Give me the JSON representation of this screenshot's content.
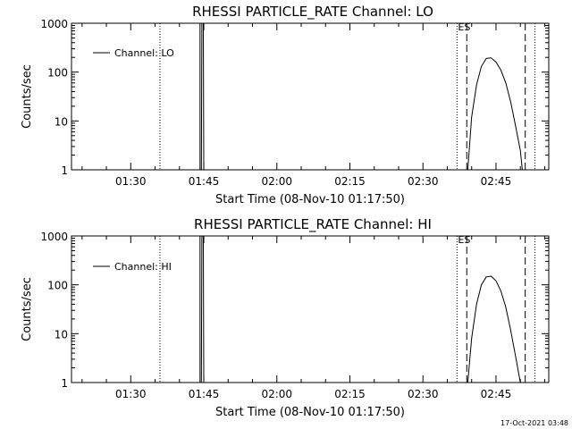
{
  "footer_timestamp": "17-Oct-2021 03:48",
  "chart_data": [
    {
      "type": "line",
      "title": "RHESSI PARTICLE_RATE Channel: LO",
      "xlabel": "Start Time (08-Nov-10 01:17:50)",
      "ylabel": "Counts/sec",
      "yscale": "log",
      "ylim": [
        1,
        1000
      ],
      "xlim_minutes_after_start": [
        0,
        98
      ],
      "x_tick_labels": [
        "01:30",
        "01:45",
        "02:00",
        "02:15",
        "02:30",
        "02:45"
      ],
      "y_tick_labels": [
        "1",
        "10",
        "100",
        "1000"
      ],
      "legend": {
        "position": "top-left",
        "entries": [
          "Channel: LO"
        ]
      },
      "color": "#000000",
      "annotations": [
        {
          "type": "dotted_vline",
          "time": "01:36"
        },
        {
          "type": "dotted_vline",
          "time": "02:37"
        },
        {
          "type": "dotted_vline",
          "time": "02:53"
        },
        {
          "type": "dashed_vline",
          "time": "02:39"
        },
        {
          "type": "dashed_vline",
          "time": "02:51"
        },
        {
          "type": "text",
          "text": "ES",
          "time": "02:37"
        }
      ],
      "series": [
        {
          "name": "Channel: LO",
          "points": [
            [
              "01:44:30",
              1
            ],
            [
              "01:44:36",
              1000
            ],
            [
              "01:44:54",
              1000
            ],
            [
              "01:45:00",
              1
            ],
            [
              "02:39:12",
              1
            ],
            [
              "02:40:00",
              12
            ],
            [
              "02:41:00",
              55
            ],
            [
              "02:42:00",
              130
            ],
            [
              "02:43:00",
              190
            ],
            [
              "02:44:00",
              195
            ],
            [
              "02:45:00",
              160
            ],
            [
              "02:46:00",
              110
            ],
            [
              "02:47:00",
              60
            ],
            [
              "02:48:00",
              25
            ],
            [
              "02:49:00",
              8
            ],
            [
              "02:50:00",
              2.5
            ],
            [
              "02:50:24",
              1
            ]
          ]
        }
      ]
    },
    {
      "type": "line",
      "title": "RHESSI PARTICLE_RATE Channel: HI",
      "xlabel": "Start Time (08-Nov-10 01:17:50)",
      "ylabel": "Counts/sec",
      "yscale": "log",
      "ylim": [
        1,
        1000
      ],
      "xlim_minutes_after_start": [
        0,
        98
      ],
      "x_tick_labels": [
        "01:30",
        "01:45",
        "02:00",
        "02:15",
        "02:30",
        "02:45"
      ],
      "y_tick_labels": [
        "1",
        "10",
        "100",
        "1000"
      ],
      "legend": {
        "position": "top-left",
        "entries": [
          "Channel: HI"
        ]
      },
      "color": "#000000",
      "annotations": [
        {
          "type": "dotted_vline",
          "time": "01:36"
        },
        {
          "type": "dotted_vline",
          "time": "02:37"
        },
        {
          "type": "dotted_vline",
          "time": "02:53"
        },
        {
          "type": "dashed_vline",
          "time": "02:39"
        },
        {
          "type": "dashed_vline",
          "time": "02:51"
        },
        {
          "type": "text",
          "text": "ES",
          "time": "02:37"
        }
      ],
      "series": [
        {
          "name": "Channel: HI",
          "points": [
            [
              "01:44:30",
              1
            ],
            [
              "01:44:36",
              1000
            ],
            [
              "01:44:54",
              1000
            ],
            [
              "01:45:00",
              1
            ],
            [
              "02:39:12",
              1
            ],
            [
              "02:40:00",
              8
            ],
            [
              "02:41:00",
              40
            ],
            [
              "02:42:00",
              100
            ],
            [
              "02:43:00",
              145
            ],
            [
              "02:44:00",
              150
            ],
            [
              "02:45:00",
              120
            ],
            [
              "02:46:00",
              75
            ],
            [
              "02:47:00",
              35
            ],
            [
              "02:48:00",
              12
            ],
            [
              "02:49:00",
              3.5
            ],
            [
              "02:50:00",
              1
            ]
          ]
        }
      ]
    }
  ]
}
